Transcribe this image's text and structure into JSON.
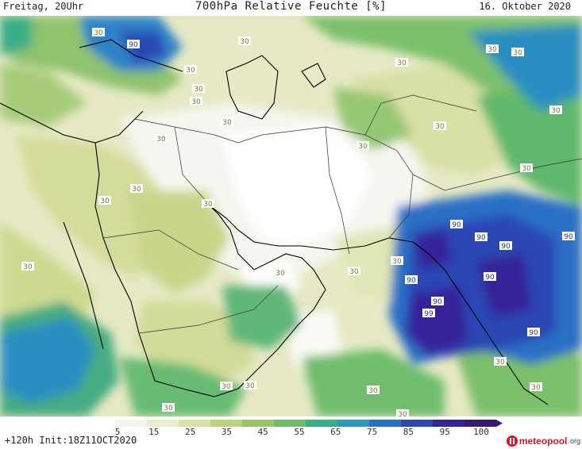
{
  "header": {
    "left": "Freitag, 20Uhr",
    "title": "700hPa Relative Feuchte [%]",
    "right": "16. Oktober 2020"
  },
  "footer": {
    "run_info": "+120h Init:18Z11OCT2020",
    "logo_text": "meteopool",
    "logo_suffix": ".org"
  },
  "colorbar": {
    "ticks": [
      "5",
      "15",
      "25",
      "35",
      "45",
      "55",
      "65",
      "75",
      "85",
      "95",
      "100"
    ],
    "colors": [
      "#ffffff",
      "#f4f4ee",
      "#ebedcf",
      "#d9e2a4",
      "#bdd27e",
      "#99c46a",
      "#6cbc6a",
      "#3aae85",
      "#2a9bb8",
      "#2a6fc6",
      "#2c46b4",
      "#34249a",
      "#3a1a6e"
    ]
  },
  "contour_labels": [
    {
      "text": "30"
    },
    {
      "text": "90"
    },
    {
      "text": "30"
    },
    {
      "text": "30"
    },
    {
      "text": "30"
    },
    {
      "text": "30"
    },
    {
      "text": "30"
    },
    {
      "text": "30"
    },
    {
      "text": "30"
    },
    {
      "text": "30"
    },
    {
      "text": "30"
    },
    {
      "text": "30"
    },
    {
      "text": "30"
    },
    {
      "text": "30"
    },
    {
      "text": "30"
    },
    {
      "text": "30"
    },
    {
      "text": "30"
    },
    {
      "text": "30"
    },
    {
      "text": "30"
    },
    {
      "text": "30"
    },
    {
      "text": "90"
    },
    {
      "text": "90"
    },
    {
      "text": "90"
    },
    {
      "text": "90"
    },
    {
      "text": "90"
    },
    {
      "text": "90"
    },
    {
      "text": "90"
    },
    {
      "text": "99"
    },
    {
      "text": "90"
    },
    {
      "text": "30"
    },
    {
      "text": "30"
    },
    {
      "text": "30"
    },
    {
      "text": "30"
    },
    {
      "text": "30"
    },
    {
      "text": "30"
    },
    {
      "text": "30"
    },
    {
      "text": "30"
    },
    {
      "text": "30"
    }
  ]
}
